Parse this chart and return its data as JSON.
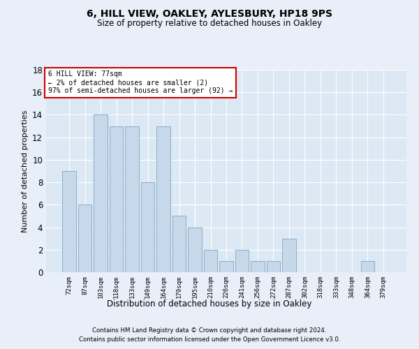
{
  "title1": "6, HILL VIEW, OAKLEY, AYLESBURY, HP18 9PS",
  "title2": "Size of property relative to detached houses in Oakley",
  "xlabel": "Distribution of detached houses by size in Oakley",
  "ylabel": "Number of detached properties",
  "categories": [
    "72sqm",
    "87sqm",
    "103sqm",
    "118sqm",
    "133sqm",
    "149sqm",
    "164sqm",
    "179sqm",
    "195sqm",
    "210sqm",
    "226sqm",
    "241sqm",
    "256sqm",
    "272sqm",
    "287sqm",
    "302sqm",
    "318sqm",
    "333sqm",
    "348sqm",
    "364sqm",
    "379sqm"
  ],
  "values": [
    9,
    6,
    14,
    13,
    13,
    8,
    13,
    5,
    4,
    2,
    1,
    2,
    1,
    1,
    3,
    0,
    0,
    0,
    0,
    1,
    0
  ],
  "bar_color": "#c8d8eb",
  "bar_edge_color": "#8aaec8",
  "ylim": [
    0,
    18
  ],
  "yticks": [
    0,
    2,
    4,
    6,
    8,
    10,
    12,
    14,
    16,
    18
  ],
  "annotation_line1": "6 HILL VIEW: 77sqm",
  "annotation_line2": "← 2% of detached houses are smaller (2)",
  "annotation_line3": "97% of semi-detached houses are larger (92) →",
  "annotation_box_color": "#ffffff",
  "annotation_box_edge": "#cc0000",
  "footnote1": "Contains HM Land Registry data © Crown copyright and database right 2024.",
  "footnote2": "Contains public sector information licensed under the Open Government Licence v3.0.",
  "fig_bg_color": "#e8eff8",
  "plot_bg_color": "#dce8f4"
}
